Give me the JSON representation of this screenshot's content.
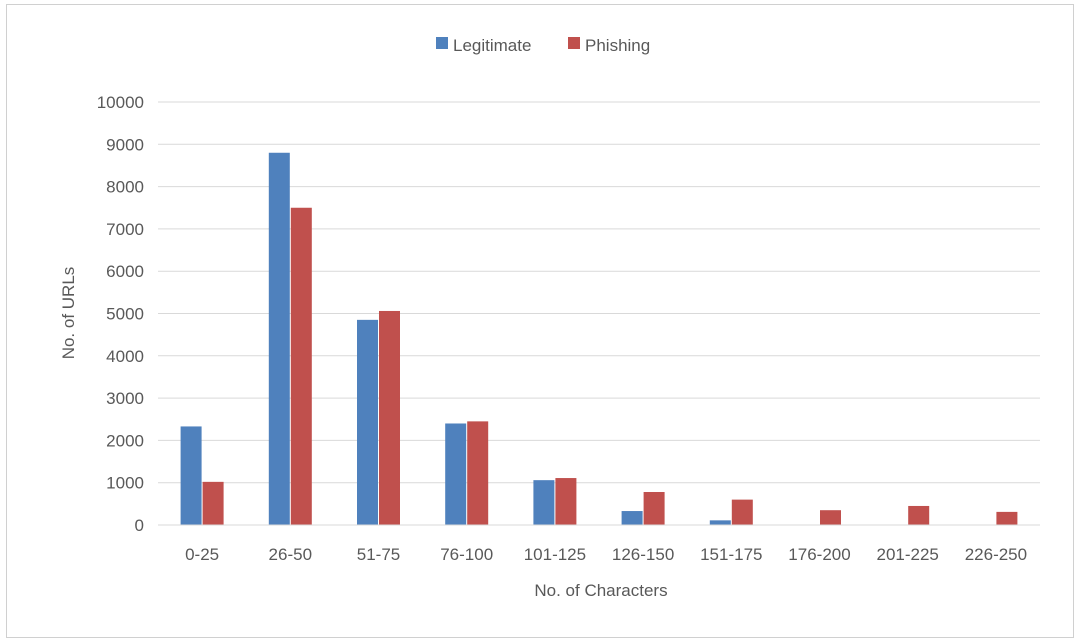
{
  "chart_data": {
    "type": "bar",
    "categories": [
      "0-25",
      "26-50",
      "51-75",
      "76-100",
      "101-125",
      "126-150",
      "151-175",
      "176-200",
      "201-225",
      "226-250"
    ],
    "series": [
      {
        "name": "Legitimate",
        "color": "#4f81bd",
        "values": [
          2330,
          8800,
          4850,
          2400,
          1060,
          330,
          110,
          0,
          0,
          0
        ]
      },
      {
        "name": "Phishing",
        "color": "#c0504d",
        "values": [
          1020,
          7500,
          5060,
          2450,
          1110,
          780,
          600,
          350,
          450,
          310
        ]
      }
    ],
    "xlabel": "No. of Characters",
    "ylabel": "No. of URLs",
    "ylim": [
      0,
      10000
    ],
    "yticks": [
      "0",
      "1000",
      "2000",
      "3000",
      "4000",
      "5000",
      "6000",
      "7000",
      "8000",
      "9000",
      "10000"
    ],
    "grid": true,
    "legend_position": "top-center",
    "gridline_color": "#d9d9d9"
  }
}
